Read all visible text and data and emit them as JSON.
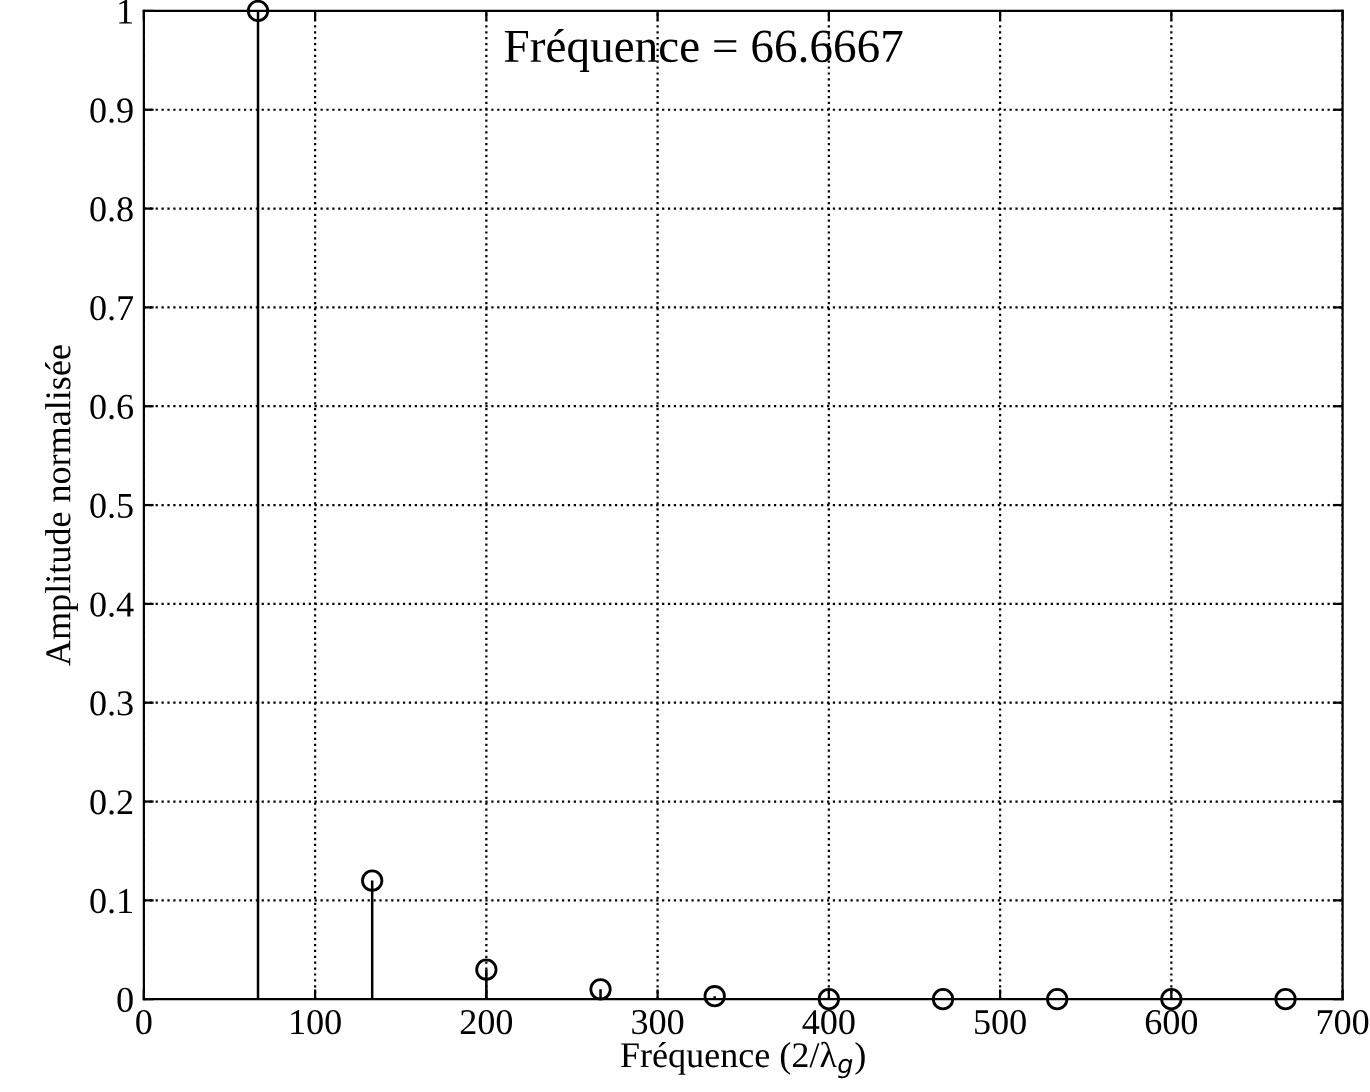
{
  "chart_data": {
    "type": "lollipop",
    "xlabel": "Fréquence (2/λ$_{g}$)",
    "ylabel": "Amplitude normalisée",
    "annotations": [
      "Fréquence = 66.6667"
    ],
    "x": [
      66.6667,
      133.333,
      200,
      266.667,
      333.333,
      400,
      466.667,
      533.333,
      600,
      666.667
    ],
    "series": [
      {
        "color": "#000000",
        "values": [
          1,
          0.12,
          0.03,
          0.01,
          0.003,
          0,
          0,
          0,
          0,
          0
        ]
      }
    ],
    "xlim": [
      0,
      700
    ],
    "xticks": [
      0,
      100,
      200,
      300,
      400,
      500,
      600,
      700
    ],
    "ylim": [
      0,
      1
    ],
    "yticks": [
      0,
      0.1,
      0.2,
      0.3,
      0.4,
      0.5,
      0.6,
      0.7,
      0.8,
      0.9,
      1
    ],
    "grid": true,
    "marker": "circle",
    "line_style": "solid"
  }
}
